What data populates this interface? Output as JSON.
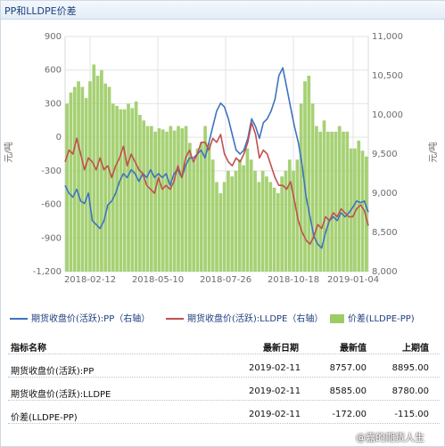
{
  "header": {
    "title": "PP和LLDPE价差"
  },
  "chart_data": {
    "type": "combo",
    "left_axis": {
      "label": "元/吨",
      "min": -1200,
      "max": 900,
      "ticks": [
        900,
        600,
        300,
        0,
        -300,
        -600,
        -900,
        -1200
      ]
    },
    "right_axis": {
      "label": "元/吨",
      "min": 8000,
      "max": 11000,
      "ticks": [
        "11,000",
        "10,500",
        "10,000",
        "9,500",
        "9,000",
        "8,500",
        "8,000"
      ]
    },
    "x_tick_labels": [
      "2018-02-12",
      "2018-05-10",
      "2018-07-26",
      "2018-10-18",
      "2019-01-04"
    ],
    "grid": true,
    "legend_position": "bottom",
    "series": [
      {
        "name": "期货收盘价(活跃):PP（右轴）",
        "type": "line",
        "axis": "right",
        "color": "#3f72c2",
        "values": [
          9100,
          9000,
          8950,
          9050,
          8900,
          8870,
          9000,
          8650,
          8600,
          8550,
          8650,
          8850,
          8900,
          9000,
          9150,
          9250,
          9200,
          9300,
          9250,
          9150,
          9250,
          9200,
          9300,
          9200,
          9250,
          9200,
          9250,
          9100,
          9250,
          9300,
          9200,
          9350,
          9450,
          9450,
          9500,
          9550,
          9450,
          9650,
          9850,
          10050,
          10150,
          10100,
          9950,
          9750,
          9550,
          9500,
          9550,
          9700,
          9950,
          9850,
          9700,
          9900,
          9950,
          10050,
          10200,
          10500,
          10600,
          10350,
          10100,
          9850,
          9650,
          9350,
          8950,
          8700,
          8450,
          8350,
          8300,
          8500,
          8650,
          8700,
          8650,
          8750,
          8700,
          8750,
          8820,
          8900,
          8880,
          8900,
          8757
        ]
      },
      {
        "name": "期货收盘价(活跃):LLDPE（右轴）",
        "type": "line",
        "axis": "right",
        "color": "#c0504d",
        "values": [
          9400,
          9550,
          9500,
          9700,
          9500,
          9300,
          9450,
          9400,
          9300,
          9450,
          9300,
          9350,
          9200,
          9350,
          9450,
          9600,
          9350,
          9500,
          9400,
          9300,
          9250,
          9100,
          9050,
          9000,
          9200,
          9050,
          9100,
          9050,
          9150,
          9350,
          9200,
          9450,
          9550,
          9400,
          9500,
          9650,
          9650,
          9550,
          9700,
          9650,
          9750,
          9500,
          9400,
          9350,
          9450,
          9400,
          9500,
          9650,
          9900,
          9750,
          9450,
          9550,
          9500,
          9350,
          9200,
          9100,
          9100,
          9050,
          9150,
          8900,
          8650,
          8500,
          8400,
          8350,
          8450,
          8600,
          8550,
          8700,
          8650,
          8750,
          8700,
          8800,
          8750,
          8700,
          8700,
          8800,
          8850,
          8780,
          8585
        ]
      },
      {
        "name": "价差(LLDPE-PP)",
        "type": "bar",
        "axis": "left",
        "color": "#9ccc65",
        "values": [
          300,
          400,
          450,
          500,
          450,
          350,
          500,
          650,
          550,
          600,
          480,
          450,
          300,
          280,
          250,
          250,
          300,
          260,
          320,
          200,
          150,
          100,
          100,
          50,
          80,
          70,
          50,
          100,
          60,
          100,
          80,
          100,
          -50,
          -200,
          -100,
          -50,
          100,
          -50,
          -200,
          -400,
          -500,
          -400,
          -300,
          -350,
          -300,
          -200,
          -250,
          -100,
          -200,
          -300,
          -400,
          -300,
          -350,
          -400,
          -450,
          -500,
          -350,
          -300,
          -200,
          -300,
          -200,
          300,
          500,
          550,
          300,
          100,
          50,
          150,
          50,
          50,
          50,
          100,
          50,
          50,
          -100,
          -100,
          -30,
          -120,
          -172
        ]
      }
    ]
  },
  "legend": [
    {
      "label": "期货收盘价(活跃):PP（右轴）",
      "color": "#3f72c2",
      "kind": "line"
    },
    {
      "label": "期货收盘价(活跃):LLDPE（右轴）",
      "color": "#c0504d",
      "kind": "line"
    },
    {
      "label": "价差(LLDPE-PP)",
      "color": "#9ccc65",
      "kind": "bar"
    }
  ],
  "table": {
    "headers": {
      "name": "指标名称",
      "date": "最新日期",
      "latest": "最新值",
      "prev": "上期值"
    },
    "rows": [
      {
        "name": "期货收盘价(活跃):PP",
        "date": "2019-02-11",
        "latest": "8757.00",
        "prev": "8895.00"
      },
      {
        "name": "期货收盘价(活跃):LLDPE",
        "date": "2019-02-11",
        "latest": "8585.00",
        "prev": "8780.00"
      },
      {
        "name": "价差(LLDPE-PP)",
        "date": "2019-02-11",
        "latest": "-172.00",
        "prev": "-115.00"
      }
    ]
  },
  "watermark": "@嘉的期货人生"
}
